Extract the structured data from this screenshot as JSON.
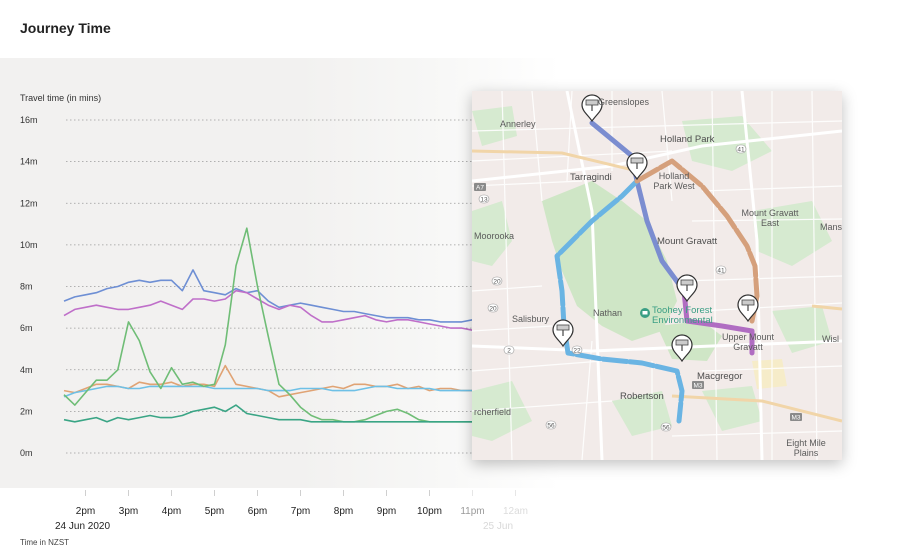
{
  "header": {
    "title": "Journey Time"
  },
  "chart_data": {
    "type": "line",
    "ylabel": "Travel time (in mins)",
    "xlabel": "Time in NZST",
    "ylim": [
      0,
      16
    ],
    "yticks": [
      0,
      2,
      4,
      6,
      8,
      10,
      12,
      14,
      16
    ],
    "ytick_labels": [
      "0m",
      "2m",
      "4m",
      "6m",
      "8m",
      "10m",
      "12m",
      "14m",
      "16m"
    ],
    "xlim": [
      13.5,
      24.5
    ],
    "xticks": [
      14,
      15,
      16,
      17,
      18,
      19,
      20,
      21,
      22,
      23,
      24
    ],
    "xtick_labels": [
      "2pm",
      "3pm",
      "4pm",
      "5pm",
      "6pm",
      "7pm",
      "8pm",
      "9pm",
      "10pm",
      "11pm",
      "12am"
    ],
    "date_labels": [
      "24 Jun 2020",
      "25 Jun"
    ],
    "grid": "horizontal-dotted",
    "series": [
      {
        "color": "#6e8fd4",
        "x": [
          13.5,
          13.75,
          14,
          14.25,
          14.5,
          14.75,
          15,
          15.25,
          15.5,
          15.75,
          16,
          16.25,
          16.5,
          16.75,
          17,
          17.25,
          17.5,
          17.75,
          18,
          18.25,
          18.5,
          18.75,
          19,
          19.25,
          19.5,
          19.75,
          20,
          20.25,
          20.5,
          20.75,
          21,
          21.25,
          21.5,
          21.75,
          22,
          22.25,
          22.5,
          22.75,
          23,
          23.25,
          23.5
        ],
        "values": [
          7.3,
          7.5,
          7.6,
          7.7,
          7.9,
          8.0,
          8.2,
          8.3,
          8.2,
          8.3,
          8.3,
          7.8,
          8.8,
          7.8,
          7.7,
          7.6,
          7.9,
          7.7,
          7.8,
          7.3,
          7.0,
          7.1,
          7.2,
          7.1,
          7.0,
          6.9,
          6.8,
          6.8,
          6.7,
          6.6,
          6.5,
          6.5,
          6.5,
          6.4,
          6.4,
          6.3,
          6.3,
          6.3,
          6.4,
          6.3,
          6.3
        ]
      },
      {
        "color": "#bf6fc9",
        "x": [
          13.5,
          13.75,
          14,
          14.25,
          14.5,
          14.75,
          15,
          15.25,
          15.5,
          15.75,
          16,
          16.25,
          16.5,
          16.75,
          17,
          17.25,
          17.5,
          17.75,
          18,
          18.25,
          18.5,
          18.75,
          19,
          19.25,
          19.5,
          19.75,
          20,
          20.25,
          20.5,
          20.75,
          21,
          21.25,
          21.5,
          21.75,
          22,
          22.25,
          22.5,
          22.75,
          23,
          23.25,
          23.5
        ],
        "values": [
          6.6,
          6.9,
          7.0,
          7.1,
          7.0,
          6.9,
          6.9,
          7.0,
          7.1,
          7.3,
          7.1,
          6.9,
          7.4,
          7.4,
          7.3,
          7.4,
          7.8,
          7.7,
          7.4,
          7.1,
          6.9,
          7.1,
          7.0,
          6.6,
          6.3,
          6.3,
          6.4,
          6.5,
          6.6,
          6.4,
          6.3,
          6.4,
          6.4,
          6.3,
          6.2,
          6.1,
          6.0,
          6.0,
          5.9,
          5.9,
          5.9
        ]
      },
      {
        "color": "#e0a374",
        "x": [
          13.5,
          13.75,
          14,
          14.25,
          14.5,
          14.75,
          15,
          15.25,
          15.5,
          15.75,
          16,
          16.25,
          16.5,
          16.75,
          17,
          17.25,
          17.5,
          17.75,
          18,
          18.25,
          18.5,
          18.75,
          19,
          19.25,
          19.5,
          19.75,
          20,
          20.25,
          20.5,
          20.75,
          21,
          21.25,
          21.5,
          21.75,
          22,
          22.25,
          22.5,
          22.75,
          23,
          23.25,
          23.5
        ],
        "values": [
          3.0,
          2.9,
          3.1,
          3.3,
          3.3,
          3.2,
          3.1,
          3.4,
          3.3,
          3.3,
          3.4,
          3.2,
          3.3,
          3.3,
          3.2,
          4.2,
          3.3,
          3.2,
          3.1,
          3.0,
          2.7,
          2.8,
          2.9,
          3.0,
          3.1,
          3.2,
          3.1,
          3.3,
          3.3,
          3.2,
          3.2,
          3.3,
          3.1,
          3.2,
          3.0,
          3.1,
          3.1,
          3.0,
          3.0,
          3.1,
          3.0
        ]
      },
      {
        "color": "#6ec0e6",
        "x": [
          13.5,
          13.75,
          14,
          14.25,
          14.5,
          14.75,
          15,
          15.25,
          15.5,
          15.75,
          16,
          16.25,
          16.5,
          16.75,
          17,
          17.25,
          17.5,
          17.75,
          18,
          18.25,
          18.5,
          18.75,
          19,
          19.25,
          19.5,
          19.75,
          20,
          20.25,
          20.5,
          20.75,
          21,
          21.25,
          21.5,
          21.75,
          22,
          22.25,
          22.5,
          22.75,
          23,
          23.25,
          23.5
        ],
        "values": [
          2.7,
          2.9,
          3.0,
          3.1,
          3.2,
          3.2,
          3.1,
          3.1,
          3.2,
          3.2,
          3.2,
          3.2,
          3.2,
          3.2,
          3.1,
          3.1,
          3.1,
          3.1,
          3.1,
          3.0,
          3.0,
          3.0,
          3.1,
          3.1,
          3.1,
          3.0,
          3.0,
          3.0,
          3.1,
          3.2,
          3.2,
          3.1,
          3.1,
          3.1,
          3.1,
          3.0,
          3.0,
          3.0,
          3.0,
          2.9,
          2.9
        ]
      },
      {
        "color": "#6fbd76",
        "x": [
          13.5,
          13.75,
          14,
          14.25,
          14.5,
          14.75,
          15,
          15.25,
          15.5,
          15.75,
          16,
          16.25,
          16.5,
          16.75,
          17,
          17.25,
          17.5,
          17.75,
          18,
          18.25,
          18.5,
          18.75,
          19,
          19.25,
          19.5,
          19.75,
          20,
          20.25,
          20.5,
          20.75,
          21,
          21.25,
          21.5,
          21.75,
          22,
          22.25,
          22.5,
          22.75,
          23,
          23.25,
          23.5
        ],
        "values": [
          2.8,
          2.3,
          2.9,
          3.5,
          3.5,
          4.0,
          6.3,
          5.4,
          3.9,
          3.1,
          4.1,
          3.3,
          3.4,
          3.2,
          3.3,
          5.2,
          9.0,
          10.8,
          8.0,
          5.6,
          3.3,
          2.8,
          2.2,
          1.8,
          1.6,
          1.6,
          1.5,
          1.5,
          1.6,
          1.8,
          2.0,
          2.1,
          1.9,
          1.6,
          1.5,
          1.5,
          1.5,
          1.5,
          1.5,
          1.5,
          1.5
        ]
      },
      {
        "color": "#3aa585",
        "x": [
          13.5,
          13.75,
          14,
          14.25,
          14.5,
          14.75,
          15,
          15.25,
          15.5,
          15.75,
          16,
          16.25,
          16.5,
          16.75,
          17,
          17.25,
          17.5,
          17.75,
          18,
          18.25,
          18.5,
          18.75,
          19,
          19.25,
          19.5,
          19.75,
          20,
          20.25,
          20.5,
          20.75,
          21,
          21.25,
          21.5,
          21.75,
          22,
          22.25,
          22.5,
          22.75,
          23,
          23.25,
          23.5
        ],
        "values": [
          1.6,
          1.5,
          1.6,
          1.7,
          1.5,
          1.7,
          1.6,
          1.7,
          1.8,
          1.7,
          1.7,
          1.8,
          2.0,
          2.1,
          2.2,
          2.0,
          2.3,
          1.9,
          1.8,
          1.7,
          1.6,
          1.6,
          1.6,
          1.5,
          1.5,
          1.5,
          1.5,
          1.5,
          1.5,
          1.5,
          1.5,
          1.5,
          1.5,
          1.5,
          1.5,
          1.5,
          1.5,
          1.5,
          1.5,
          1.5,
          1.5
        ]
      }
    ]
  },
  "map": {
    "labels": [
      "Greenslopes",
      "Annerley",
      "Holland Park",
      "Holland Park West",
      "Tarragindi",
      "Mount Gravatt",
      "Mount Gravatt East",
      "Mans",
      "Moorooka",
      "Salisbury",
      "Nathan",
      "Toohey Forest Environmental",
      "Upper Mount Gravatt",
      "Wisl",
      "Macgregor",
      "Robertson",
      "Eight Mile Plains",
      "rcherfield"
    ],
    "road_shields": [
      "A7",
      "13",
      "20",
      "41",
      "41",
      "20",
      "2",
      "22",
      "56",
      "56",
      "M3",
      "M3"
    ],
    "route_colors": {
      "blue": "#6ab4e3",
      "indigo": "#7b8dd0",
      "tan": "#d5a07c",
      "purple": "#b06dc2"
    },
    "markers": [
      "camera-marker",
      "camera-marker",
      "camera-marker",
      "camera-marker",
      "camera-marker",
      "camera-marker"
    ]
  }
}
